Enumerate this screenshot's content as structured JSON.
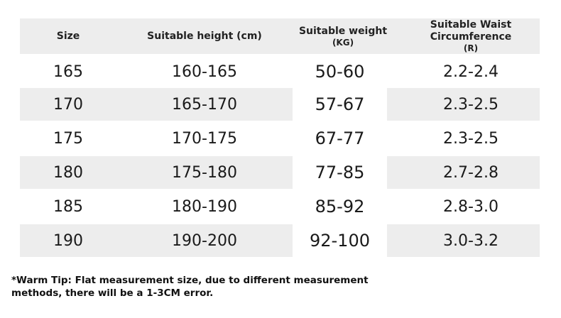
{
  "table": {
    "headers": {
      "size": "Size",
      "height": "Suitable height (cm)",
      "weight": "Suitable weight",
      "weight_unit": "(KG)",
      "waist_line1": "Suitable Waist",
      "waist_line2": "Circumference",
      "waist_unit": "(R)"
    },
    "rows": [
      {
        "size": "165",
        "height": "160-165",
        "weight": "50-60",
        "waist": "2.2-2.4"
      },
      {
        "size": "170",
        "height": "165-170",
        "weight": "57-67",
        "waist": "2.3-2.5"
      },
      {
        "size": "175",
        "height": "170-175",
        "weight": "67-77",
        "waist": "2.3-2.5"
      },
      {
        "size": "180",
        "height": "175-180",
        "weight": "77-85",
        "waist": "2.7-2.8"
      },
      {
        "size": "185",
        "height": "180-190",
        "weight": "85-92",
        "waist": "2.8-3.0"
      },
      {
        "size": "190",
        "height": "190-200",
        "weight": "92-100",
        "waist": "3.0-3.2"
      }
    ]
  },
  "tip": {
    "line1": "*Warm Tip: Flat measurement size, due to different measurement",
    "line2": "methods, there will be a 1-3CM error."
  },
  "colors": {
    "row_shade": "#ededed",
    "background": "#ffffff",
    "text": "#1a1a1a"
  }
}
